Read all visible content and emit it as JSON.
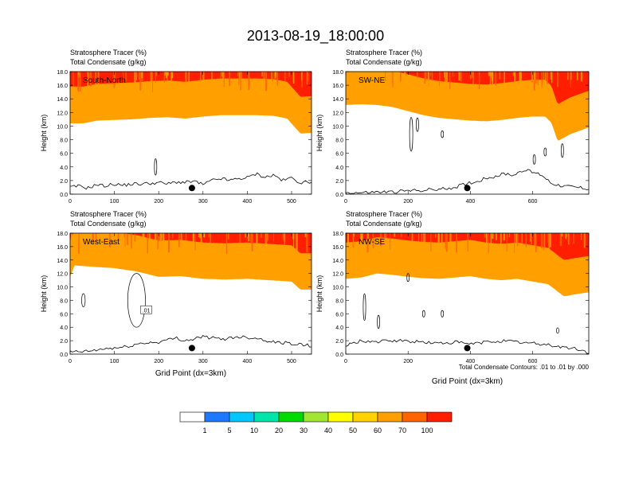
{
  "figure_title": "2013-08-19_18:00:00",
  "var_line1": "Stratosphere Tracer   (%)",
  "var_line2": "Total Condensate   (g/kg)",
  "ylabel": "Height (km)",
  "xlabel": "Grid Point (dx=3km)",
  "contour_note": "Total Condensate Contours: .01 to .01 by .000",
  "contour_label": ".01",
  "colors": {
    "levels": [
      "#ffffff",
      "#1e78ff",
      "#00c8ff",
      "#00e6aa",
      "#00dc00",
      "#a0e632",
      "#ffff00",
      "#ffd200",
      "#ffa000",
      "#ff6400",
      "#ff1e00"
    ],
    "line": "#000000"
  },
  "chart_data": [
    {
      "type": "heatmap",
      "panel": "South-North",
      "xlim": [
        0,
        545
      ],
      "ylim": [
        0,
        18
      ],
      "xticks": [
        0,
        100,
        200,
        300,
        400,
        500
      ],
      "yticks": [
        0.0,
        2.0,
        4.0,
        6.0,
        8.0,
        10.0,
        12.0,
        14.0,
        16.0,
        18.0
      ],
      "marker_x": 275,
      "tracer_boundary": {
        "x": [
          0,
          30,
          60,
          100,
          140,
          180,
          220,
          260,
          300,
          340,
          380,
          420,
          460,
          490,
          520,
          545
        ],
        "y": [
          10.4,
          10.4,
          10.8,
          10.9,
          11.0,
          11.2,
          11.3,
          11.1,
          11.4,
          11.6,
          11.6,
          11.6,
          11.5,
          11.1,
          8.9,
          9.0
        ]
      },
      "terrain": {
        "x": [
          0,
          20,
          40,
          60,
          80,
          100,
          120,
          140,
          160,
          180,
          200,
          220,
          240,
          260,
          280,
          300,
          320,
          340,
          360,
          380,
          400,
          420,
          440,
          460,
          480,
          500,
          520,
          545
        ],
        "y": [
          1.0,
          1.2,
          0.9,
          1.4,
          1.2,
          1.5,
          1.3,
          1.5,
          1.5,
          1.6,
          1.7,
          1.5,
          1.8,
          1.7,
          1.9,
          1.4,
          2.0,
          2.3,
          2.0,
          2.3,
          2.4,
          3.0,
          2.5,
          2.8,
          2.0,
          2.4,
          1.7,
          1.8
        ]
      }
    },
    {
      "type": "heatmap",
      "panel": "SW-NE",
      "xlim": [
        0,
        780
      ],
      "ylim": [
        0,
        18
      ],
      "xticks": [
        0,
        200,
        400,
        600
      ],
      "yticks": [
        0.0,
        2.0,
        4.0,
        6.0,
        8.0,
        10.0,
        12.0,
        14.0,
        16.0,
        18.0
      ],
      "marker_x": 390,
      "tracer_boundary": {
        "x": [
          0,
          50,
          100,
          150,
          200,
          250,
          300,
          350,
          400,
          450,
          500,
          550,
          600,
          640,
          660,
          680,
          720,
          780
        ],
        "y": [
          13.1,
          13.2,
          13.1,
          12.8,
          12.2,
          11.6,
          11.2,
          11.0,
          10.8,
          10.7,
          10.9,
          11.2,
          11.4,
          11.4,
          10.5,
          7.8,
          8.8,
          9.8
        ]
      },
      "terrain": {
        "x": [
          0,
          50,
          100,
          150,
          200,
          250,
          300,
          350,
          390,
          420,
          450,
          480,
          510,
          540,
          570,
          600,
          630,
          660,
          700,
          740,
          780
        ],
        "y": [
          0.2,
          0.2,
          0.3,
          0.3,
          0.5,
          0.6,
          0.7,
          1.0,
          1.6,
          1.8,
          2.4,
          2.6,
          3.0,
          2.8,
          3.6,
          3.2,
          2.8,
          1.6,
          1.2,
          1.0,
          0.8
        ]
      }
    },
    {
      "type": "heatmap",
      "panel": "West-East",
      "xlim": [
        0,
        545
      ],
      "ylim": [
        0,
        18
      ],
      "xticks": [
        0,
        100,
        200,
        300,
        400,
        500
      ],
      "yticks": [
        0.0,
        2.0,
        4.0,
        6.0,
        8.0,
        10.0,
        12.0,
        14.0,
        16.0,
        18.0
      ],
      "marker_x": 275,
      "tracer_boundary": {
        "x": [
          0,
          10,
          50,
          100,
          150,
          200,
          250,
          300,
          350,
          400,
          450,
          500,
          520,
          545
        ],
        "y": [
          11.5,
          13.2,
          13.0,
          12.8,
          12.3,
          11.5,
          11.6,
          11.2,
          11.1,
          11.2,
          11.0,
          10.8,
          9.6,
          9.6
        ]
      },
      "terrain": {
        "x": [
          0,
          40,
          80,
          120,
          160,
          200,
          240,
          260,
          300,
          340,
          380,
          420,
          460,
          500,
          545
        ],
        "y": [
          0.3,
          0.4,
          0.8,
          1.0,
          1.6,
          1.8,
          2.4,
          2.0,
          2.6,
          2.2,
          2.6,
          2.4,
          1.8,
          1.6,
          1.2
        ]
      }
    },
    {
      "type": "heatmap",
      "panel": "NW-SE",
      "xlim": [
        0,
        780
      ],
      "ylim": [
        0,
        18
      ],
      "xticks": [
        0,
        200,
        400,
        600
      ],
      "yticks": [
        0.0,
        2.0,
        4.0,
        6.0,
        8.0,
        10.0,
        12.0,
        14.0,
        16.0,
        18.0
      ],
      "marker_x": 390,
      "tracer_boundary": {
        "x": [
          0,
          50,
          100,
          150,
          200,
          250,
          300,
          350,
          400,
          450,
          500,
          550,
          600,
          650,
          700,
          750,
          780
        ],
        "y": [
          11.2,
          11.4,
          12.0,
          11.8,
          11.5,
          11.3,
          11.2,
          11.4,
          11.6,
          11.2,
          11.0,
          11.2,
          10.8,
          10.4,
          8.6,
          9.0,
          9.2
        ]
      },
      "terrain": {
        "x": [
          0,
          50,
          100,
          150,
          200,
          250,
          300,
          350,
          400,
          450,
          500,
          550,
          600,
          650,
          700,
          740,
          780
        ],
        "y": [
          1.2,
          2.0,
          1.8,
          2.0,
          1.9,
          1.8,
          1.6,
          1.8,
          1.5,
          1.8,
          2.0,
          1.8,
          1.6,
          1.4,
          1.0,
          0.8,
          0.2
        ]
      }
    }
  ],
  "labelbar": {
    "tick_labels": [
      "1",
      "5",
      "10",
      "20",
      "30",
      "40",
      "50",
      "60",
      "70",
      "100"
    ]
  }
}
